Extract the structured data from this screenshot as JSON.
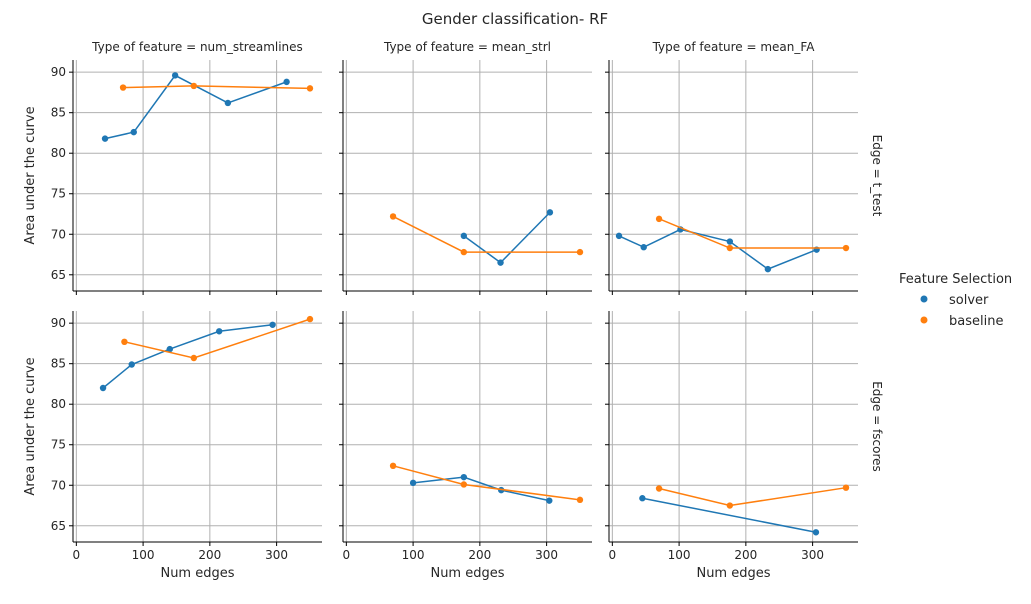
{
  "colors": {
    "solver": "#1f77b4",
    "baseline": "#ff7f0e",
    "grid": "#b0b0b0",
    "axis": "#000000"
  },
  "chart_data": {
    "type": "line",
    "title": "Gender classification- RF",
    "xlabel": "Num edges",
    "ylabel": "Area under the curve",
    "xlim": [
      -5,
      368
    ],
    "ylim": [
      63,
      91.5
    ],
    "xticks": [
      0,
      100,
      200,
      300
    ],
    "yticks": [
      65,
      70,
      75,
      80,
      85,
      90
    ],
    "grid": true,
    "legend": {
      "title": "Feature Selection",
      "placement": "right",
      "entries": [
        {
          "name": "solver"
        },
        {
          "name": "baseline"
        }
      ]
    },
    "panels": [
      {
        "title": "Type of feature = num_streamlines",
        "row_label": "",
        "series": [
          {
            "name": "solver",
            "x": [
              43,
              86,
              148,
              227,
              315
            ],
            "y": [
              81.8,
              82.6,
              89.6,
              86.2,
              88.8
            ]
          },
          {
            "name": "baseline",
            "x": [
              70,
              176,
              350
            ],
            "y": [
              88.1,
              88.3,
              88.0
            ]
          }
        ]
      },
      {
        "title": "Type of feature = mean_strl",
        "row_label": "",
        "series": [
          {
            "name": "solver",
            "x": [
              176,
              231,
              305
            ],
            "y": [
              69.8,
              66.5,
              72.7
            ]
          },
          {
            "name": "baseline",
            "x": [
              70,
              176,
              350
            ],
            "y": [
              72.2,
              67.8,
              67.8
            ]
          }
        ]
      },
      {
        "title": "Type of feature = mean_FA",
        "row_label": "Edge = t_test",
        "series": [
          {
            "name": "solver",
            "x": [
              10,
              47,
              102,
              176,
              233,
              306
            ],
            "y": [
              69.8,
              68.4,
              70.6,
              69.1,
              65.7,
              68.1
            ]
          },
          {
            "name": "baseline",
            "x": [
              70,
              176,
              350
            ],
            "y": [
              71.9,
              68.3,
              68.3
            ]
          }
        ]
      },
      {
        "title": "",
        "row_label": "",
        "series": [
          {
            "name": "solver",
            "x": [
              40,
              83,
              140,
              214,
              294
            ],
            "y": [
              82.0,
              84.9,
              86.8,
              89.0,
              89.8
            ]
          },
          {
            "name": "baseline",
            "x": [
              72,
              176,
              350
            ],
            "y": [
              87.7,
              85.7,
              90.5
            ]
          }
        ]
      },
      {
        "title": "",
        "row_label": "",
        "series": [
          {
            "name": "solver",
            "x": [
              100,
              176,
              232,
              304
            ],
            "y": [
              70.3,
              71.0,
              69.4,
              68.1
            ]
          },
          {
            "name": "baseline",
            "x": [
              70,
              176,
              350
            ],
            "y": [
              72.4,
              70.1,
              68.2
            ]
          }
        ]
      },
      {
        "title": "",
        "row_label": "Edge = fscores",
        "series": [
          {
            "name": "solver",
            "x": [
              45,
              305
            ],
            "y": [
              68.4,
              64.2
            ]
          },
          {
            "name": "baseline",
            "x": [
              70,
              176,
              350
            ],
            "y": [
              69.6,
              67.5,
              69.7
            ]
          }
        ]
      }
    ]
  }
}
